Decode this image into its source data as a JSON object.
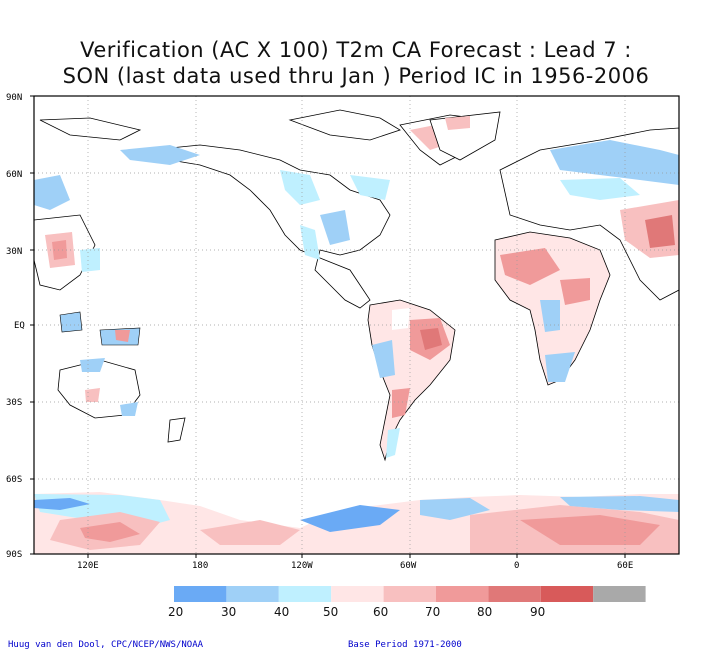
{
  "title": {
    "line1": "Verification (AC X 100) T2m CA Forecast : Lead 7 :",
    "line2": "SON (last data used thru Jan ) Period IC in 1956-2006"
  },
  "map": {
    "lat_labels": [
      "90N",
      "60N",
      "30N",
      "EQ",
      "30S",
      "60S",
      "90S"
    ],
    "lon_labels": [
      "120E",
      "180",
      "120W",
      "60W",
      "0",
      "60E"
    ],
    "grid": "dotted"
  },
  "colorbar": {
    "labels": [
      "20",
      "30",
      "40",
      "50",
      "60",
      "70",
      "80",
      "90"
    ],
    "colors": [
      "#6aaaf5",
      "#9fd0f7",
      "#bff0ff",
      "#ffe6e6",
      "#f8c0c0",
      "#f09a9a",
      "#e07878",
      "#d85a5a",
      "#a9a9a9"
    ]
  },
  "credits": {
    "left": "Huug van den Dool, CPC/NCEP/NWS/NOAA",
    "right": "Base Period 1971-2000"
  }
}
